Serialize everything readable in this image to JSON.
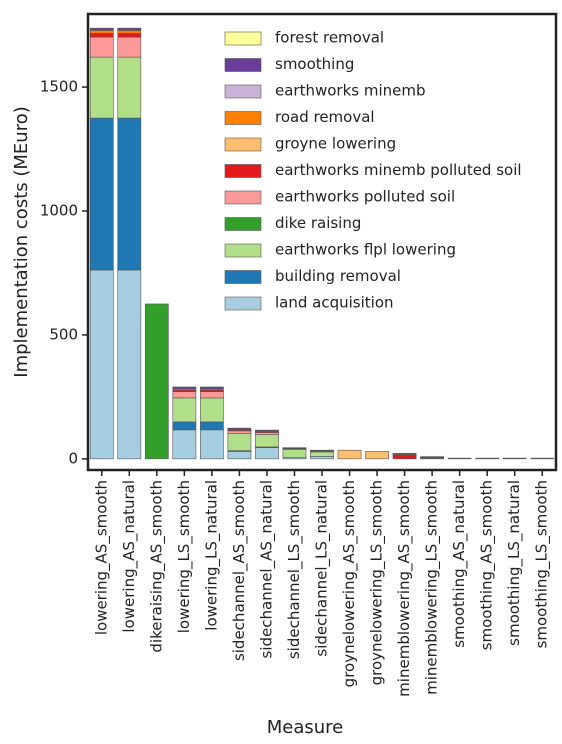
{
  "chart_data": {
    "type": "stacked-bar",
    "x_label": "Measure",
    "y_label": "Implementation costs (MEuro)",
    "categories": [
      "lowering_AS_smooth",
      "lowering_AS_natural",
      "dikeraising_AS_smooth",
      "lowering_LS_smooth",
      "lowering_LS_natural",
      "sidechannel_AS_smooth",
      "sidechannel_AS_natural",
      "sidechannel_LS_smooth",
      "sidechannel_LS_natural",
      "groynelowering_AS_smooth",
      "groynelowering_LS_smooth",
      "minemblowering_AS_smooth",
      "minemblowering_LS_smooth",
      "smoothing_AS_natural",
      "smoothing_AS_smooth",
      "smoothing_LS_natural",
      "smoothing_LS_smooth"
    ],
    "series": [
      {
        "name": "land acquisition",
        "color": "#a6cee3",
        "values": [
          762,
          762,
          0,
          117,
          117,
          30,
          45,
          5,
          10,
          0,
          0,
          0,
          0,
          0,
          0,
          0,
          0
        ]
      },
      {
        "name": "building removal",
        "color": "#1f78b4",
        "values": [
          613,
          613,
          0,
          32,
          32,
          3,
          3,
          0,
          0,
          0,
          0,
          0,
          0,
          0,
          0,
          0,
          0
        ]
      },
      {
        "name": "earthworks flpl lowering",
        "color": "#b2df8a",
        "values": [
          246,
          246,
          0,
          97,
          97,
          70,
          50,
          33,
          18,
          0,
          0,
          0,
          0,
          0,
          0,
          0,
          0
        ]
      },
      {
        "name": "dike raising",
        "color": "#33a02c",
        "values": [
          0,
          0,
          625,
          0,
          0,
          0,
          0,
          0,
          0,
          0,
          0,
          0,
          0,
          0,
          0,
          0,
          0
        ]
      },
      {
        "name": "earthworks polluted soil",
        "color": "#fb9a99",
        "values": [
          81,
          81,
          0,
          25,
          25,
          10,
          8,
          3,
          3,
          0,
          0,
          0,
          0,
          0,
          0,
          0,
          0
        ]
      },
      {
        "name": "earthworks minemb polluted soil",
        "color": "#e31a1c",
        "values": [
          15,
          15,
          0,
          6,
          6,
          4,
          4,
          2,
          2,
          0,
          0,
          15,
          3,
          0,
          0,
          0,
          0
        ]
      },
      {
        "name": "groyne lowering",
        "color": "#fdbf6f",
        "values": [
          0,
          0,
          0,
          0,
          0,
          0,
          0,
          0,
          0,
          35,
          30,
          0,
          0,
          0,
          0,
          0,
          0
        ]
      },
      {
        "name": "road removal",
        "color": "#ff7f00",
        "values": [
          12,
          12,
          0,
          5,
          5,
          3,
          3,
          1,
          1,
          0,
          0,
          3,
          1,
          0,
          0,
          0,
          0
        ]
      },
      {
        "name": "earthworks minemb",
        "color": "#cab2d6",
        "values": [
          0,
          0,
          0,
          0,
          0,
          0,
          0,
          0,
          0,
          0,
          0,
          3,
          2,
          0,
          0,
          0,
          0
        ]
      },
      {
        "name": "smoothing",
        "color": "#6a3d9a",
        "values": [
          9,
          9,
          0,
          8,
          8,
          4,
          3,
          1,
          1,
          0,
          0,
          1,
          3,
          3,
          3,
          3,
          3
        ]
      },
      {
        "name": "forest removal",
        "color": "#ffff99",
        "values": [
          0,
          0,
          0,
          0,
          0,
          0,
          0,
          0,
          0,
          0,
          0,
          0,
          0,
          0,
          0,
          0,
          0
        ]
      }
    ],
    "ylim": [
      -45,
      1795
    ],
    "yticks": [
      0,
      500,
      1000,
      1500
    ],
    "legend": "upper right"
  }
}
